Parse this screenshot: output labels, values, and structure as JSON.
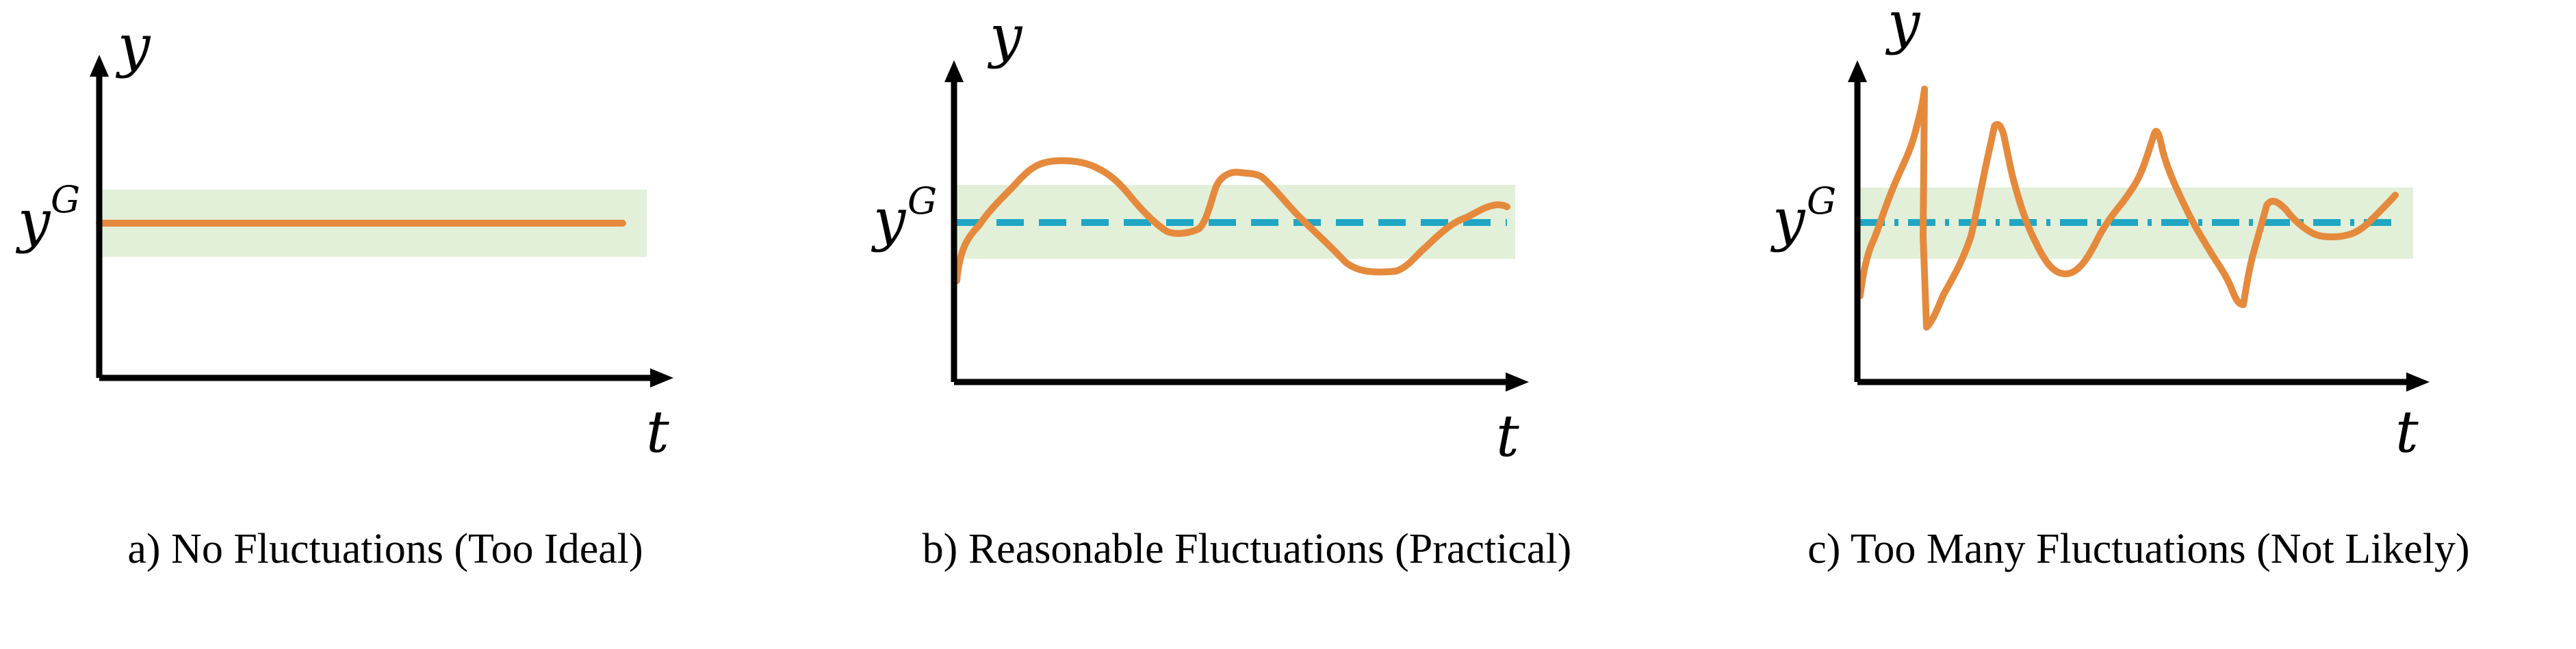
{
  "colors": {
    "band": "#e2efd9",
    "response": "#e58a3c",
    "goal_line": "#1fa6c4",
    "axis": "#000000"
  },
  "panels": [
    {
      "y_label": "y",
      "goal_label_base": "y",
      "goal_label_sup": "G",
      "x_label": "t",
      "caption": "a) No Fluctuations (Too Ideal)",
      "goal_line": "none",
      "response_shape": "flat"
    },
    {
      "y_label": "y",
      "goal_label_base": "y",
      "goal_label_sup": "G",
      "x_label": "t",
      "caption": "b) Reasonable Fluctuations (Practical)",
      "goal_line": "dashed",
      "response_shape": "moderate-oscillation"
    },
    {
      "y_label": "y",
      "goal_label_base": "y",
      "goal_label_sup": "G",
      "x_label": "t",
      "caption": "c) Too Many Fluctuations (Not Likely)",
      "goal_line": "dash-dot",
      "response_shape": "large-oscillation"
    }
  ]
}
